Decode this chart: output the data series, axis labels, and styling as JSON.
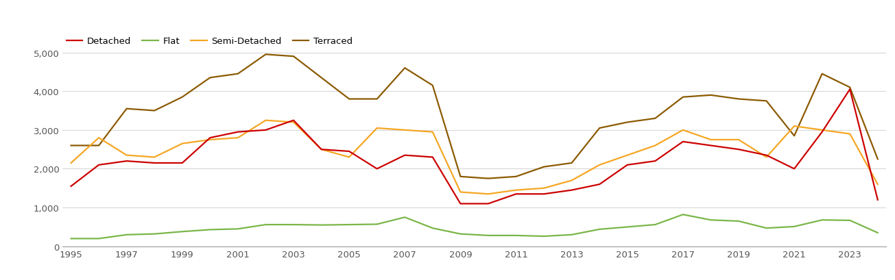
{
  "years": [
    1995,
    1996,
    1997,
    1998,
    1999,
    2000,
    2001,
    2002,
    2003,
    2004,
    2005,
    2006,
    2007,
    2008,
    2009,
    2010,
    2011,
    2012,
    2013,
    2014,
    2015,
    2016,
    2017,
    2018,
    2019,
    2020,
    2021,
    2022,
    2023,
    2024
  ],
  "detached": [
    1550,
    2100,
    2200,
    2150,
    2150,
    2800,
    2950,
    3000,
    3250,
    2500,
    2450,
    2000,
    2350,
    2300,
    1100,
    1100,
    1350,
    1350,
    1450,
    1600,
    2100,
    2200,
    2700,
    2600,
    2500,
    2350,
    2000,
    2950,
    4050,
    1200
  ],
  "flat": [
    200,
    200,
    300,
    320,
    380,
    430,
    450,
    560,
    560,
    550,
    560,
    570,
    750,
    470,
    320,
    280,
    280,
    260,
    300,
    440,
    500,
    560,
    820,
    680,
    650,
    470,
    510,
    680,
    670,
    350
  ],
  "semi_detached": [
    2150,
    2800,
    2350,
    2300,
    2650,
    2750,
    2800,
    3250,
    3200,
    2500,
    2300,
    3050,
    3000,
    2950,
    1400,
    1350,
    1450,
    1500,
    1700,
    2100,
    2350,
    2600,
    3000,
    2750,
    2750,
    2300,
    3100,
    3000,
    2900,
    1600
  ],
  "terraced": [
    2600,
    2600,
    3550,
    3500,
    3850,
    4350,
    4450,
    4950,
    4900,
    4350,
    3800,
    3800,
    4600,
    4150,
    1800,
    1750,
    1800,
    2050,
    2150,
    3050,
    3200,
    3300,
    3850,
    3900,
    3800,
    3750,
    2850,
    4450,
    4100,
    2250
  ],
  "legend_labels": [
    "Detached",
    "Flat",
    "Semi-Detached",
    "Terraced"
  ],
  "line_colors": {
    "detached": "#cc0000",
    "flat": "#7ab648",
    "semi_detached": "#f5a623",
    "terraced": "#8b5a00"
  },
  "ylim": [
    0,
    5500
  ],
  "yticks": [
    0,
    1000,
    2000,
    3000,
    4000,
    5000
  ],
  "ytick_labels": [
    "0",
    "1,000",
    "2,000",
    "3,000",
    "4,000",
    "5,000"
  ],
  "xtick_years": [
    1995,
    1997,
    1999,
    2001,
    2003,
    2005,
    2007,
    2009,
    2011,
    2013,
    2015,
    2017,
    2019,
    2021,
    2023
  ],
  "background_color": "#ffffff",
  "grid_color": "#d8d8d8",
  "line_width": 1.6,
  "figsize": [
    13.05,
    4.1
  ],
  "dpi": 100
}
